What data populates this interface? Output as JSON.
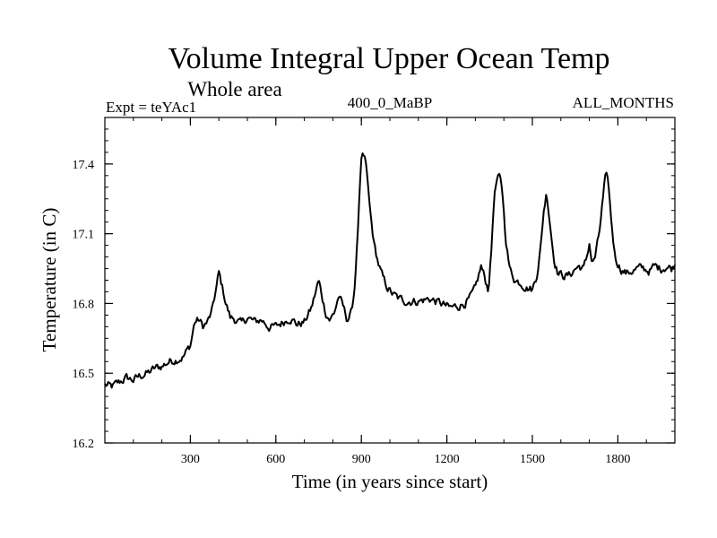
{
  "chart_data": {
    "type": "line",
    "title": "Volume Integral Upper Ocean Temp",
    "subtitle": "Whole area",
    "left_header": "Expt = teYAc1",
    "center_header": "400_0_MaBP",
    "right_header": "ALL_MONTHS",
    "xlabel": "Time (in years since start)",
    "ylabel": "Temperature (in C)",
    "xlim": [
      0,
      2000
    ],
    "ylim": [
      16.2,
      17.6
    ],
    "xticks": [
      300,
      600,
      900,
      1200,
      1500,
      1800
    ],
    "yticks": [
      16.2,
      16.5,
      16.8,
      17.1,
      17.4
    ],
    "xtick_labels": [
      "300",
      "600",
      "900",
      "1200",
      "1500",
      "1800"
    ],
    "ytick_labels": [
      "16.2",
      "16.5",
      "16.8",
      "17.1",
      "17.4"
    ],
    "series": [
      {
        "name": "Temperature",
        "color": "#000000",
        "x": [
          0,
          25,
          50,
          75,
          100,
          125,
          150,
          175,
          200,
          225,
          250,
          275,
          300,
          315,
          330,
          345,
          360,
          375,
          390,
          400,
          410,
          425,
          440,
          460,
          480,
          500,
          525,
          550,
          575,
          600,
          625,
          650,
          675,
          700,
          725,
          740,
          750,
          760,
          775,
          790,
          805,
          820,
          835,
          850,
          865,
          875,
          885,
          895,
          900,
          905,
          912,
          920,
          930,
          945,
          960,
          975,
          990,
          1010,
          1030,
          1060,
          1100,
          1140,
          1180,
          1210,
          1240,
          1260,
          1280,
          1300,
          1320,
          1335,
          1345,
          1355,
          1365,
          1375,
          1385,
          1395,
          1405,
          1420,
          1440,
          1460,
          1480,
          1500,
          1515,
          1530,
          1540,
          1550,
          1560,
          1575,
          1590,
          1610,
          1630,
          1650,
          1665,
          1680,
          1690,
          1700,
          1710,
          1720,
          1735,
          1745,
          1755,
          1765,
          1775,
          1790,
          1810,
          1830,
          1850,
          1870,
          1890,
          1910,
          1930,
          1950,
          1970,
          1990,
          2000
        ],
        "y": [
          16.45,
          16.44,
          16.46,
          16.48,
          16.47,
          16.49,
          16.5,
          16.52,
          16.53,
          16.55,
          16.56,
          16.57,
          16.62,
          16.72,
          16.73,
          16.7,
          16.72,
          16.76,
          16.86,
          16.93,
          16.88,
          16.8,
          16.74,
          16.73,
          16.71,
          16.74,
          16.72,
          16.73,
          16.7,
          16.7,
          16.72,
          16.74,
          16.71,
          16.72,
          16.78,
          16.85,
          16.9,
          16.84,
          16.76,
          16.73,
          16.76,
          16.83,
          16.79,
          16.73,
          16.76,
          16.85,
          17.05,
          17.3,
          17.4,
          17.43,
          17.42,
          17.35,
          17.2,
          17.05,
          16.97,
          16.91,
          16.87,
          16.84,
          16.82,
          16.81,
          16.81,
          16.82,
          16.8,
          16.78,
          16.79,
          16.8,
          16.82,
          16.86,
          16.96,
          16.9,
          16.86,
          17.0,
          17.25,
          17.33,
          17.34,
          17.28,
          17.1,
          16.95,
          16.9,
          16.89,
          16.87,
          16.86,
          16.92,
          17.05,
          17.2,
          17.28,
          17.17,
          17.0,
          16.93,
          16.92,
          16.92,
          16.95,
          16.96,
          16.95,
          16.99,
          17.06,
          16.97,
          17.0,
          17.1,
          17.22,
          17.33,
          17.34,
          17.18,
          17.0,
          16.95,
          16.93,
          16.94,
          16.95,
          16.95,
          16.94,
          16.96,
          16.95,
          16.96,
          16.95,
          16.97
        ]
      }
    ]
  }
}
